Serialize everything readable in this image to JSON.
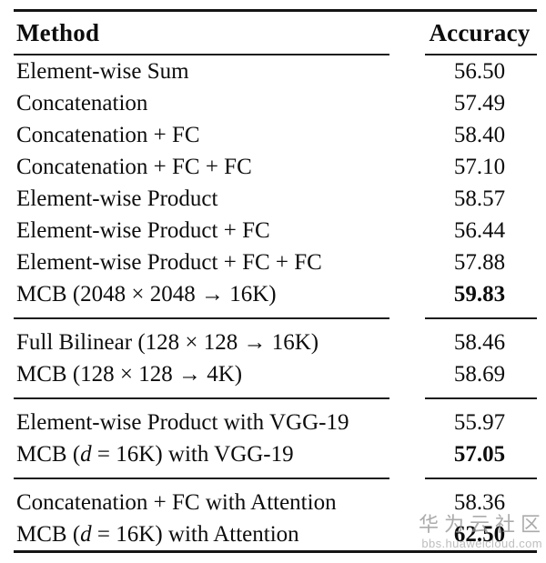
{
  "table": {
    "columns": [
      "Method",
      "Accuracy"
    ],
    "sections": [
      {
        "rows": [
          {
            "method": "Element-wise Sum",
            "accuracy": "56.50",
            "bold": false
          },
          {
            "method": "Concatenation",
            "accuracy": "57.49",
            "bold": false
          },
          {
            "method": "Concatenation + FC",
            "accuracy": "58.40",
            "bold": false
          },
          {
            "method": "Concatenation + FC + FC",
            "accuracy": "57.10",
            "bold": false
          },
          {
            "method": "Element-wise Product",
            "accuracy": "58.57",
            "bold": false
          },
          {
            "method": "Element-wise Product + FC",
            "accuracy": "56.44",
            "bold": false
          },
          {
            "method": "Element-wise Product + FC + FC",
            "accuracy": "57.88",
            "bold": false
          },
          {
            "method": "MCB (2048 × 2048 → 16K)",
            "accuracy": "59.83",
            "bold": true
          }
        ]
      },
      {
        "rows": [
          {
            "method": "Full Bilinear (128 × 128 → 16K)",
            "accuracy": "58.46",
            "bold": false
          },
          {
            "method": "MCB (128 × 128 → 4K)",
            "accuracy": "58.69",
            "bold": false
          }
        ]
      },
      {
        "rows": [
          {
            "method": "Element-wise Product with VGG-19",
            "accuracy": "55.97",
            "bold": false
          },
          {
            "method": "MCB (d = 16K) with VGG-19",
            "accuracy": "57.05",
            "bold": true
          }
        ]
      },
      {
        "rows": [
          {
            "method": "Concatenation + FC with Attention",
            "accuracy": "58.36",
            "bold": false
          },
          {
            "method": "MCB (d = 16K) with Attention",
            "accuracy": "62.50",
            "bold": true
          }
        ]
      }
    ]
  },
  "watermark": {
    "text": "华为云社区",
    "url": "bbs.huaweicloud.com"
  }
}
